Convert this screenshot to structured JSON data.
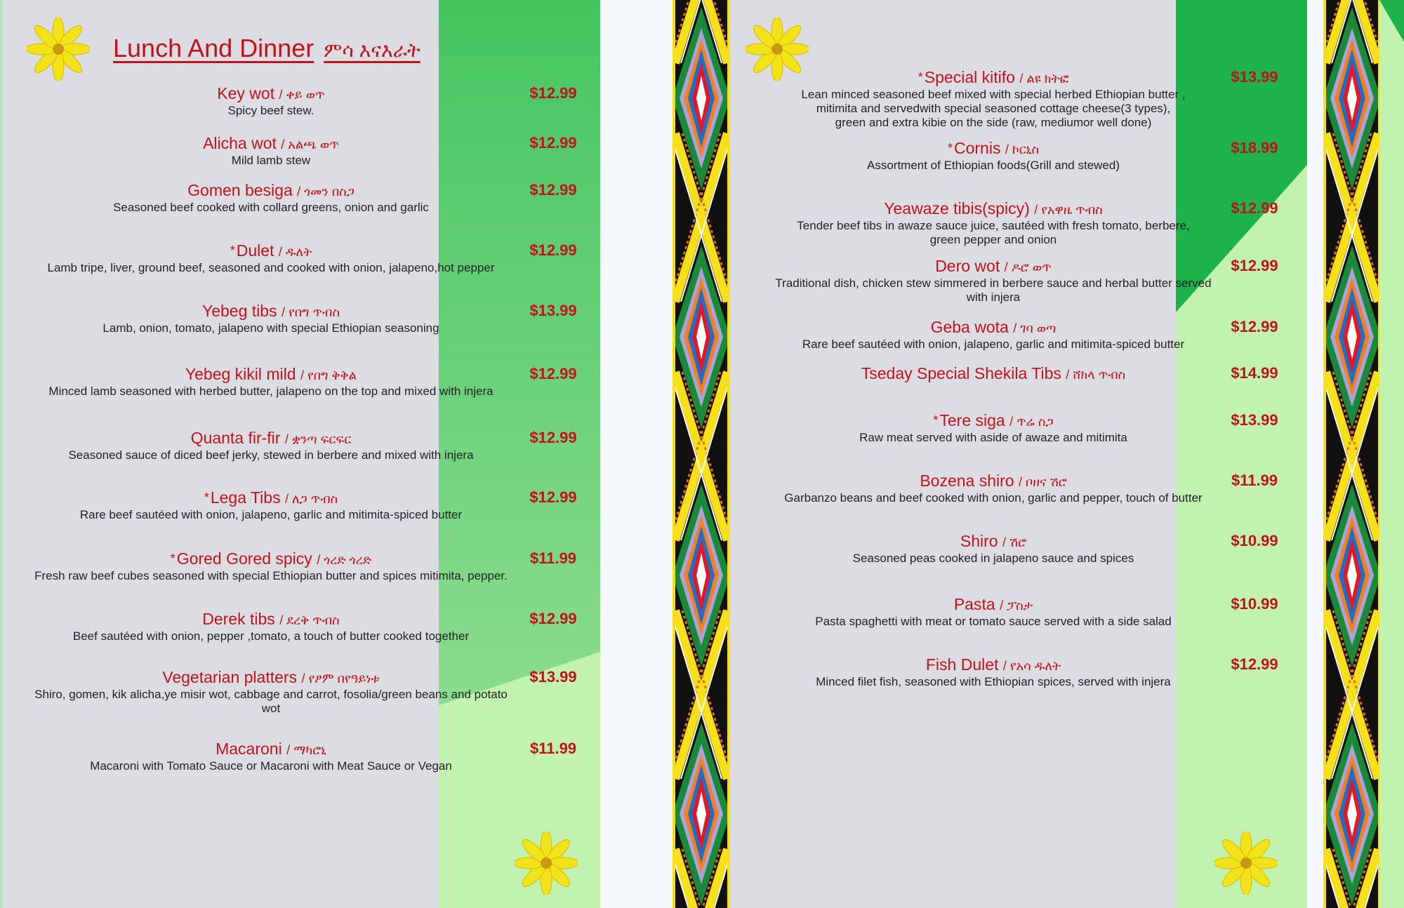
{
  "colors": {
    "accent_red": "#c0121a",
    "page_gray": "#dcdde2",
    "green_dark": "#1db34a",
    "green_mid": "#45c560",
    "green_light": "#c2f2b0"
  },
  "icons": {
    "flower": "yellow-flower-icon",
    "border": "ethiopian-tibeb-pattern"
  },
  "left": {
    "title": "Lunch And Dinner",
    "title_amharic": "ምሳ እናእራት",
    "items": [
      {
        "star": "",
        "name": "Key wot",
        "amharic": "/ ቀይ ወጥ",
        "desc": "Spicy beef stew.",
        "price": "$12.99"
      },
      {
        "star": "",
        "name": "Alicha wot",
        "amharic": "/ አልጫ ወጥ",
        "desc": "Mild lamb stew",
        "price": "$12.99"
      },
      {
        "star": "",
        "name": "Gomen besiga",
        "amharic": "/ ጎመን በስጋ",
        "desc": "Seasoned beef cooked with collard greens, onion and garlic",
        "price": "$12.99"
      },
      {
        "star": "*",
        "name": "Dulet",
        "amharic": "/ ዱለት",
        "desc": "Lamb tripe, liver, ground beef, seasoned and cooked with onion, jalapeno,hot pepper",
        "price": "$12.99"
      },
      {
        "star": "",
        "name": "Yebeg tibs",
        "amharic": "/ የበግ ጥብስ",
        "desc": "Lamb, onion, tomato, jalapeno with special Ethiopian seasoning",
        "price": "$13.99"
      },
      {
        "star": "",
        "name": "Yebeg kikil mild",
        "amharic": "/ የበግ ቅቅል",
        "desc": "Minced lamb seasoned with herbed butter, jalapeno on the top and mixed with injera",
        "price": "$12.99"
      },
      {
        "star": "",
        "name": "Quanta fir-fir",
        "amharic": "/ ቋንጣ ፍርፍር",
        "desc": "Seasoned sauce of diced beef jerky, stewed in berbere and mixed with injera",
        "price": "$12.99"
      },
      {
        "star": "*",
        "name": "Lega Tibs",
        "amharic": "/ ለጋ ጥብስ",
        "desc": "Rare beef sautéed with onion, jalapeno, garlic and mitimita-spiced butter",
        "price": "$12.99"
      },
      {
        "star": "*",
        "name": "Gored Gored spicy",
        "amharic": "/ ጎረድ ጎረድ",
        "desc": "Fresh raw beef cubes seasoned with special Ethiopian butter and spices mitimita, pepper.",
        "price": "$11.99"
      },
      {
        "star": "",
        "name": "Derek tibs",
        "amharic": "/ ደረቅ ጥብስ",
        "desc": "Beef sautéed with onion, pepper ,tomato, a touch of butter cooked together",
        "price": "$12.99"
      },
      {
        "star": "",
        "name": "Vegetarian platters",
        "amharic": "/ የፆም በየዓይነቱ",
        "desc": "Shiro, gomen, kik alicha,ye misir wot, cabbage and carrot, fosolia/green beans and potato wot",
        "price": "$13.99"
      },
      {
        "star": "",
        "name": "Macaroni",
        "amharic": "/ ማካሮኒ",
        "desc": "Macaroni  with Tomato Sauce  or  Macaroni with Meat Sauce or Vegan",
        "price": "$11.99"
      }
    ]
  },
  "right": {
    "items": [
      {
        "star": "*",
        "name": "Special kitifo",
        "amharic": "/ ልዩ ክትፎ",
        "desc": "Lean minced seasoned beef mixed with special herbed Ethiopian butter ,\nmitimita and servedwith special seasoned cottage cheese(3 types),\ngreen and extra kibie on the side (raw, mediumor well done)",
        "price": "$13.99"
      },
      {
        "star": "*",
        "name": "Cornis",
        "amharic": "/ ኮርኒስ",
        "desc": "Assortment of Ethiopian foods(Grill and stewed)",
        "price": "$18.99"
      },
      {
        "star": "",
        "name": "Yeawaze tibis(spicy)",
        "amharic": "/ የአዋዜ ጥብስ",
        "desc": "Tender beef tibs in awaze sauce juice, sautéed with fresh tomato, berbere,\ngreen pepper and onion",
        "price": "$12.99"
      },
      {
        "star": "",
        "name": "Dero wot",
        "amharic": "/ ዶሮ ወጥ",
        "desc": "Traditional dish, chicken stew simmered in berbere sauce and herbal butter served with injera",
        "price": "$12.99"
      },
      {
        "star": "",
        "name": "Geba wota",
        "amharic": "/ ገባ ወጣ",
        "desc": "Rare beef sautéed with onion, jalapeno, garlic and mitimita-spiced butter",
        "price": "$12.99"
      },
      {
        "star": "",
        "name": "Tseday Special Shekila Tibs",
        "amharic": "/ ሸክላ ጥብስ",
        "desc": "",
        "price": "$14.99"
      },
      {
        "star": "*",
        "name": "Tere siga",
        "amharic": "/ ጥሬ ስጋ",
        "desc": "Raw meat served with aside of awaze and mitimita",
        "price": "$13.99"
      },
      {
        "star": "",
        "name": "Bozena shiro",
        "amharic": "/ ቦዘና ሽሮ",
        "desc": "Garbanzo beans and beef cooked with onion, garlic and pepper, touch of butter",
        "price": "$11.99"
      },
      {
        "star": "",
        "name": "Shiro",
        "amharic": "/ ሽሮ",
        "desc": "Seasoned peas cooked in jalapeno sauce and spices",
        "price": "$10.99"
      },
      {
        "star": "",
        "name": "Pasta",
        "amharic": "/ ፓስታ",
        "desc": "Pasta spaghetti with meat or tomato sauce served with a side salad",
        "price": "$10.99"
      },
      {
        "star": "",
        "name": "Fish Dulet",
        "amharic": "/ የአሳ ዱለት",
        "desc": "Minced filet fish, seasoned with Ethiopian spices, served with injera",
        "price": "$12.99"
      }
    ]
  }
}
